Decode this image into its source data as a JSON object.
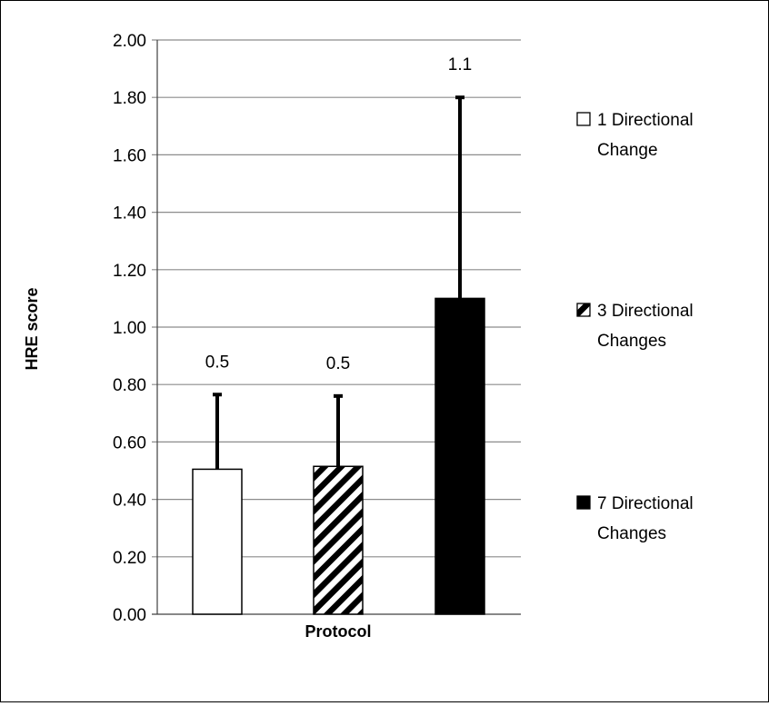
{
  "chart_data": {
    "type": "bar",
    "title": "",
    "xlabel": "Protocol",
    "ylabel": "HRE score",
    "ylim": [
      0,
      2
    ],
    "yticks": [
      "0.00",
      "0.20",
      "0.40",
      "0.60",
      "0.80",
      "1.00",
      "1.20",
      "1.40",
      "1.60",
      "1.80",
      "2.00"
    ],
    "grid": true,
    "legend_position": "right",
    "series": [
      {
        "name": "1 Directional Change",
        "legend_lines": [
          "1 Directional",
          "Change"
        ],
        "value": 0.505,
        "error_upper": 0.765,
        "data_label": "0.5",
        "fill": "white"
      },
      {
        "name": "3 Directional Changes",
        "legend_lines": [
          "3 Directional",
          "Changes"
        ],
        "value": 0.515,
        "error_upper": 0.76,
        "data_label": "0.5",
        "fill": "diagonal-hatch"
      },
      {
        "name": "7 Directional Changes",
        "legend_lines": [
          "7 Directional",
          "Changes"
        ],
        "value": 1.1,
        "error_upper": 1.8,
        "data_label": "1.1",
        "fill": "black"
      }
    ]
  },
  "colors": {
    "gridline": "#8c8c8c",
    "bar_outline": "#000000",
    "solid_bar": "#000000",
    "error_bar": "#000000"
  }
}
